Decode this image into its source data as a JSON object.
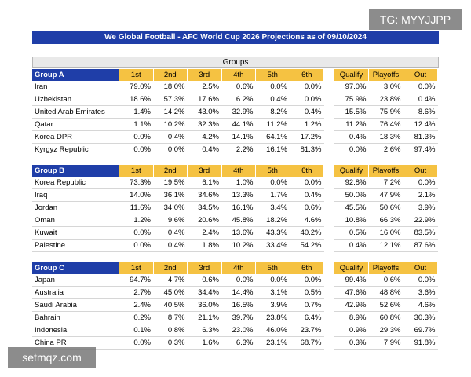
{
  "title": "We Global Football - AFC World Cup 2026 Projections as of 09/10/2024",
  "groups_label": "Groups",
  "columns": [
    "1st",
    "2nd",
    "3rd",
    "4th",
    "5th",
    "6th"
  ],
  "side_columns": [
    "Qualify",
    "Playoffs",
    "Out"
  ],
  "groups": [
    {
      "name": "Group A",
      "rows": [
        {
          "team": "Iran",
          "vals": [
            "79.0%",
            "18.0%",
            "2.5%",
            "0.6%",
            "0.0%",
            "0.0%"
          ],
          "side": [
            "97.0%",
            "3.0%",
            "0.0%"
          ]
        },
        {
          "team": "Uzbekistan",
          "vals": [
            "18.6%",
            "57.3%",
            "17.6%",
            "6.2%",
            "0.4%",
            "0.0%"
          ],
          "side": [
            "75.9%",
            "23.8%",
            "0.4%"
          ]
        },
        {
          "team": "United Arab Emirates",
          "vals": [
            "1.4%",
            "14.2%",
            "43.0%",
            "32.9%",
            "8.2%",
            "0.4%"
          ],
          "side": [
            "15.5%",
            "75.9%",
            "8.6%"
          ]
        },
        {
          "team": "Qatar",
          "vals": [
            "1.1%",
            "10.2%",
            "32.3%",
            "44.1%",
            "11.2%",
            "1.2%"
          ],
          "side": [
            "11.2%",
            "76.4%",
            "12.4%"
          ]
        },
        {
          "team": "Korea DPR",
          "vals": [
            "0.0%",
            "0.4%",
            "4.2%",
            "14.1%",
            "64.1%",
            "17.2%"
          ],
          "side": [
            "0.4%",
            "18.3%",
            "81.3%"
          ]
        },
        {
          "team": "Kyrgyz Republic",
          "vals": [
            "0.0%",
            "0.0%",
            "0.4%",
            "2.2%",
            "16.1%",
            "81.3%"
          ],
          "side": [
            "0.0%",
            "2.6%",
            "97.4%"
          ]
        }
      ]
    },
    {
      "name": "Group B",
      "rows": [
        {
          "team": "Korea Republic",
          "vals": [
            "73.3%",
            "19.5%",
            "6.1%",
            "1.0%",
            "0.0%",
            "0.0%"
          ],
          "side": [
            "92.8%",
            "7.2%",
            "0.0%"
          ]
        },
        {
          "team": "Iraq",
          "vals": [
            "14.0%",
            "36.1%",
            "34.6%",
            "13.3%",
            "1.7%",
            "0.4%"
          ],
          "side": [
            "50.0%",
            "47.9%",
            "2.1%"
          ]
        },
        {
          "team": "Jordan",
          "vals": [
            "11.6%",
            "34.0%",
            "34.5%",
            "16.1%",
            "3.4%",
            "0.6%"
          ],
          "side": [
            "45.5%",
            "50.6%",
            "3.9%"
          ]
        },
        {
          "team": "Oman",
          "vals": [
            "1.2%",
            "9.6%",
            "20.6%",
            "45.8%",
            "18.2%",
            "4.6%"
          ],
          "side": [
            "10.8%",
            "66.3%",
            "22.9%"
          ]
        },
        {
          "team": "Kuwait",
          "vals": [
            "0.0%",
            "0.4%",
            "2.4%",
            "13.6%",
            "43.3%",
            "40.2%"
          ],
          "side": [
            "0.5%",
            "16.0%",
            "83.5%"
          ]
        },
        {
          "team": "Palestine",
          "vals": [
            "0.0%",
            "0.4%",
            "1.8%",
            "10.2%",
            "33.4%",
            "54.2%"
          ],
          "side": [
            "0.4%",
            "12.1%",
            "87.6%"
          ]
        }
      ]
    },
    {
      "name": "Group C",
      "rows": [
        {
          "team": "Japan",
          "vals": [
            "94.7%",
            "4.7%",
            "0.6%",
            "0.0%",
            "0.0%",
            "0.0%"
          ],
          "side": [
            "99.4%",
            "0.6%",
            "0.0%"
          ]
        },
        {
          "team": "Australia",
          "vals": [
            "2.7%",
            "45.0%",
            "34.4%",
            "14.4%",
            "3.1%",
            "0.5%"
          ],
          "side": [
            "47.6%",
            "48.8%",
            "3.6%"
          ]
        },
        {
          "team": "Saudi Arabia",
          "vals": [
            "2.4%",
            "40.5%",
            "36.0%",
            "16.5%",
            "3.9%",
            "0.7%"
          ],
          "side": [
            "42.9%",
            "52.6%",
            "4.6%"
          ]
        },
        {
          "team": "Bahrain",
          "vals": [
            "0.2%",
            "8.7%",
            "21.1%",
            "39.7%",
            "23.8%",
            "6.4%"
          ],
          "side": [
            "8.9%",
            "60.8%",
            "30.3%"
          ]
        },
        {
          "team": "Indonesia",
          "vals": [
            "0.1%",
            "0.8%",
            "6.3%",
            "23.0%",
            "46.0%",
            "23.7%"
          ],
          "side": [
            "0.9%",
            "29.3%",
            "69.7%"
          ]
        },
        {
          "team": "China PR",
          "vals": [
            "0.0%",
            "0.3%",
            "1.6%",
            "6.3%",
            "23.1%",
            "68.7%"
          ],
          "side": [
            "0.3%",
            "7.9%",
            "91.8%"
          ]
        }
      ]
    }
  ],
  "watermark_tg": "TG: MYYJJPP",
  "watermark_url": "setmqz.com"
}
